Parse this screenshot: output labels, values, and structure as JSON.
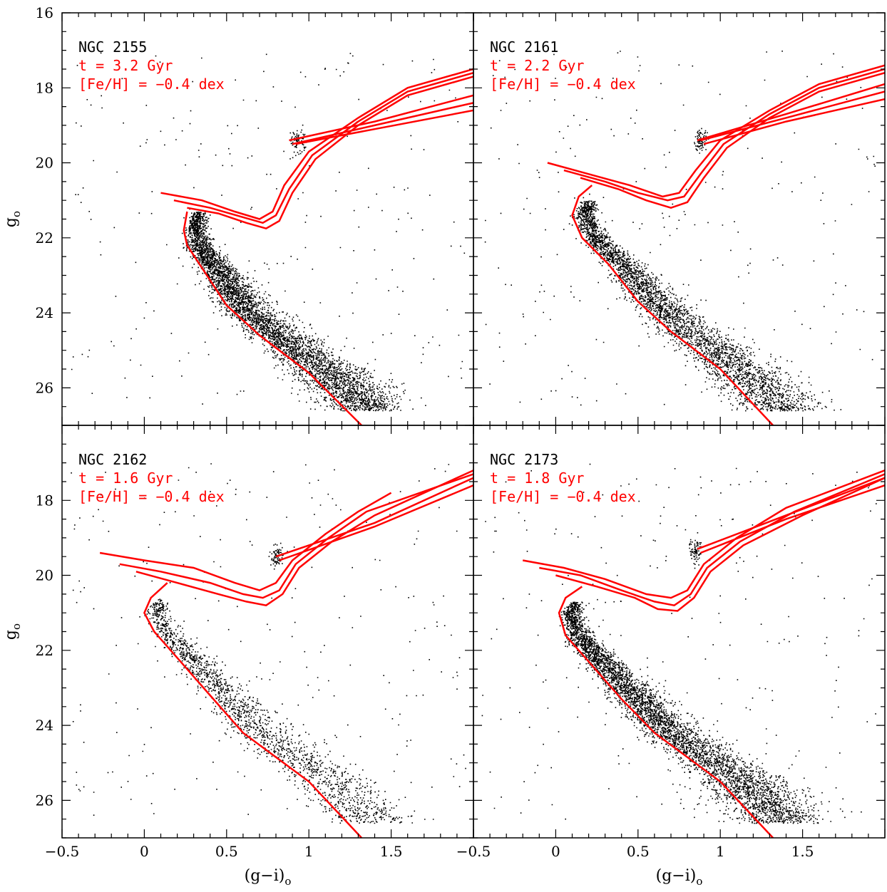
{
  "figure": {
    "x_axis_title": "(g−i)",
    "x_axis_subscript": "o",
    "y_axis_title": "g",
    "y_axis_subscript": "o",
    "isochrone_color": "#ff0000",
    "star_color": "#000000"
  },
  "chart_data": [
    {
      "type": "scatter",
      "cluster": "NGC 2155",
      "age_label": "t = 3.2 Gyr",
      "feh_label": "[Fe/H] = −0.4 dex",
      "xlim": [
        -0.5,
        2.0
      ],
      "ylim": [
        27,
        16
      ],
      "x_ticks": [
        "−0.5",
        "0",
        "0.5",
        "1",
        "1.5"
      ],
      "y_ticks": [
        "16",
        "18",
        "20",
        "22",
        "24",
        "26"
      ],
      "msto": {
        "color": 0.22,
        "mag": 21.3
      },
      "rc": {
        "color": 0.93,
        "mag": 19.4
      },
      "isochrone_mainseq": [
        [
          1.32,
          27.0
        ],
        [
          1.0,
          25.6
        ],
        [
          0.7,
          24.6
        ],
        [
          0.5,
          23.8
        ],
        [
          0.35,
          22.8
        ],
        [
          0.26,
          22.2
        ],
        [
          0.24,
          21.8
        ],
        [
          0.26,
          21.3
        ]
      ],
      "isochrone_tracks": [
        [
          [
            0.1,
            20.8
          ],
          [
            0.35,
            21.0
          ],
          [
            0.55,
            21.3
          ],
          [
            0.7,
            21.5
          ],
          [
            0.78,
            21.3
          ],
          [
            0.85,
            20.6
          ],
          [
            1.0,
            19.7
          ],
          [
            1.3,
            18.8
          ],
          [
            1.6,
            18.0
          ],
          [
            2.0,
            17.5
          ]
        ],
        [
          [
            0.18,
            21.0
          ],
          [
            0.4,
            21.2
          ],
          [
            0.6,
            21.45
          ],
          [
            0.72,
            21.6
          ],
          [
            0.8,
            21.4
          ],
          [
            0.88,
            20.7
          ],
          [
            1.02,
            19.8
          ],
          [
            1.3,
            18.9
          ],
          [
            1.6,
            18.1
          ],
          [
            2.0,
            17.6
          ]
        ],
        [
          [
            0.26,
            21.2
          ],
          [
            0.45,
            21.35
          ],
          [
            0.62,
            21.6
          ],
          [
            0.74,
            21.75
          ],
          [
            0.82,
            21.55
          ],
          [
            0.9,
            20.8
          ],
          [
            1.04,
            19.9
          ],
          [
            1.3,
            19.0
          ],
          [
            1.6,
            18.2
          ],
          [
            2.0,
            17.7
          ]
        ]
      ],
      "isochrone_agb": [
        [
          [
            0.88,
            19.4
          ],
          [
            1.4,
            18.9
          ],
          [
            2.0,
            18.2
          ]
        ],
        [
          [
            0.9,
            19.5
          ],
          [
            1.4,
            19.0
          ],
          [
            2.0,
            18.4
          ]
        ],
        [
          [
            0.92,
            19.5
          ],
          [
            1.4,
            19.1
          ],
          [
            2.0,
            18.6
          ]
        ]
      ]
    },
    {
      "type": "scatter",
      "cluster": "NGC 2161",
      "age_label": "t = 2.2 Gyr",
      "feh_label": "[Fe/H] = −0.4 dex",
      "xlim": [
        -0.5,
        2.0
      ],
      "ylim": [
        27,
        16
      ],
      "x_ticks": [
        "−0.5",
        "0",
        "0.5",
        "1",
        "1.5"
      ],
      "y_ticks": [
        "16",
        "18",
        "20",
        "22",
        "24",
        "26"
      ],
      "msto": {
        "color": 0.08,
        "mag": 21.0
      },
      "rc": {
        "color": 0.88,
        "mag": 19.4
      },
      "isochrone_mainseq": [
        [
          1.32,
          27.0
        ],
        [
          1.0,
          25.5
        ],
        [
          0.7,
          24.5
        ],
        [
          0.5,
          23.7
        ],
        [
          0.32,
          22.7
        ],
        [
          0.16,
          22.0
        ],
        [
          0.1,
          21.4
        ],
        [
          0.14,
          20.9
        ],
        [
          0.22,
          20.6
        ]
      ],
      "isochrone_tracks": [
        [
          [
            -0.05,
            20.0
          ],
          [
            0.2,
            20.3
          ],
          [
            0.45,
            20.6
          ],
          [
            0.65,
            20.9
          ],
          [
            0.75,
            20.8
          ],
          [
            0.85,
            20.2
          ],
          [
            1.0,
            19.4
          ],
          [
            1.3,
            18.6
          ],
          [
            1.6,
            17.9
          ],
          [
            2.0,
            17.4
          ]
        ],
        [
          [
            0.05,
            20.2
          ],
          [
            0.3,
            20.5
          ],
          [
            0.5,
            20.8
          ],
          [
            0.68,
            21.0
          ],
          [
            0.78,
            20.9
          ],
          [
            0.88,
            20.3
          ],
          [
            1.02,
            19.5
          ],
          [
            1.3,
            18.7
          ],
          [
            1.6,
            18.0
          ],
          [
            2.0,
            17.5
          ]
        ],
        [
          [
            0.15,
            20.4
          ],
          [
            0.38,
            20.7
          ],
          [
            0.55,
            21.0
          ],
          [
            0.7,
            21.2
          ],
          [
            0.8,
            21.05
          ],
          [
            0.9,
            20.4
          ],
          [
            1.04,
            19.6
          ],
          [
            1.3,
            18.8
          ],
          [
            1.6,
            18.1
          ],
          [
            2.0,
            17.6
          ]
        ]
      ],
      "isochrone_agb": [
        [
          [
            0.86,
            19.4
          ],
          [
            1.4,
            18.7
          ],
          [
            2.0,
            17.9
          ]
        ],
        [
          [
            0.88,
            19.4
          ],
          [
            1.4,
            18.8
          ],
          [
            2.0,
            18.1
          ]
        ],
        [
          [
            0.9,
            19.5
          ],
          [
            1.4,
            18.9
          ],
          [
            2.0,
            18.3
          ]
        ]
      ]
    },
    {
      "type": "scatter",
      "cluster": "NGC 2162",
      "age_label": "t = 1.6 Gyr",
      "feh_label": "[Fe/H] = −0.4 dex",
      "xlim": [
        -0.5,
        2.0
      ],
      "ylim": [
        27,
        16
      ],
      "x_ticks": [
        "−0.5",
        "0",
        "0.5",
        "1",
        "1.5"
      ],
      "y_ticks": [
        "16",
        "18",
        "20",
        "22",
        "24",
        "26"
      ],
      "msto": {
        "color": 0.0,
        "mag": 20.6
      },
      "rc": {
        "color": 0.8,
        "mag": 19.5
      },
      "isochrone_mainseq": [
        [
          1.32,
          27.0
        ],
        [
          1.0,
          25.5
        ],
        [
          0.6,
          24.2
        ],
        [
          0.4,
          23.2
        ],
        [
          0.2,
          22.2
        ],
        [
          0.06,
          21.5
        ],
        [
          0.0,
          21.0
        ],
        [
          0.04,
          20.6
        ],
        [
          0.14,
          20.2
        ]
      ],
      "isochrone_tracks": [
        [
          [
            -0.27,
            19.4
          ],
          [
            0.0,
            19.6
          ],
          [
            0.3,
            19.8
          ],
          [
            0.55,
            20.2
          ],
          [
            0.7,
            20.4
          ],
          [
            0.8,
            20.2
          ],
          [
            0.9,
            19.6
          ],
          [
            1.1,
            18.9
          ],
          [
            1.3,
            18.3
          ],
          [
            1.5,
            17.8
          ]
        ],
        [
          [
            -0.15,
            19.7
          ],
          [
            0.1,
            19.9
          ],
          [
            0.4,
            20.2
          ],
          [
            0.6,
            20.5
          ],
          [
            0.72,
            20.6
          ],
          [
            0.82,
            20.4
          ],
          [
            0.92,
            19.7
          ],
          [
            1.12,
            19.0
          ],
          [
            1.35,
            18.3
          ],
          [
            2.0,
            17.3
          ]
        ],
        [
          [
            -0.05,
            19.9
          ],
          [
            0.2,
            20.2
          ],
          [
            0.45,
            20.5
          ],
          [
            0.62,
            20.7
          ],
          [
            0.74,
            20.8
          ],
          [
            0.84,
            20.5
          ],
          [
            0.94,
            19.8
          ],
          [
            1.14,
            19.1
          ],
          [
            1.4,
            18.4
          ],
          [
            2.0,
            17.2
          ]
        ]
      ],
      "isochrone_agb": [
        [
          [
            0.8,
            19.5
          ],
          [
            1.4,
            18.6
          ],
          [
            2.0,
            17.4
          ]
        ],
        [
          [
            0.82,
            19.6
          ],
          [
            1.4,
            18.7
          ],
          [
            2.0,
            17.6
          ]
        ]
      ]
    },
    {
      "type": "scatter",
      "cluster": "NGC 2173",
      "age_label": "t = 1.8 Gyr",
      "feh_label": "[Fe/H] = −0.4 dex",
      "xlim": [
        -0.5,
        2.0
      ],
      "ylim": [
        27,
        16
      ],
      "x_ticks": [
        "−0.5",
        "0",
        "0.5",
        "1",
        "1.5"
      ],
      "y_ticks": [
        "16",
        "18",
        "20",
        "22",
        "24",
        "26"
      ],
      "msto": {
        "color": 0.02,
        "mag": 20.7
      },
      "rc": {
        "color": 0.85,
        "mag": 19.3
      },
      "isochrone_mainseq": [
        [
          1.32,
          27.0
        ],
        [
          1.0,
          25.5
        ],
        [
          0.6,
          24.2
        ],
        [
          0.4,
          23.3
        ],
        [
          0.2,
          22.3
        ],
        [
          0.06,
          21.6
        ],
        [
          0.02,
          21.0
        ],
        [
          0.06,
          20.6
        ],
        [
          0.16,
          20.3
        ]
      ],
      "isochrone_tracks": [
        [
          [
            -0.2,
            19.6
          ],
          [
            0.05,
            19.8
          ],
          [
            0.3,
            20.1
          ],
          [
            0.55,
            20.5
          ],
          [
            0.7,
            20.6
          ],
          [
            0.8,
            20.4
          ],
          [
            0.9,
            19.7
          ],
          [
            1.1,
            19.0
          ],
          [
            1.4,
            18.2
          ],
          [
            2.0,
            17.2
          ]
        ],
        [
          [
            -0.1,
            19.8
          ],
          [
            0.15,
            20.0
          ],
          [
            0.4,
            20.4
          ],
          [
            0.6,
            20.7
          ],
          [
            0.72,
            20.8
          ],
          [
            0.82,
            20.5
          ],
          [
            0.92,
            19.8
          ],
          [
            1.12,
            19.1
          ],
          [
            1.45,
            18.3
          ],
          [
            2.0,
            17.3
          ]
        ],
        [
          [
            0.0,
            20.0
          ],
          [
            0.25,
            20.3
          ],
          [
            0.48,
            20.6
          ],
          [
            0.62,
            20.9
          ],
          [
            0.74,
            20.95
          ],
          [
            0.84,
            20.6
          ],
          [
            0.94,
            19.9
          ],
          [
            1.14,
            19.2
          ],
          [
            1.5,
            18.4
          ],
          [
            2.0,
            17.4
          ]
        ]
      ],
      "isochrone_agb": [
        [
          [
            0.86,
            19.3
          ],
          [
            1.4,
            18.4
          ],
          [
            2.0,
            17.4
          ]
        ],
        [
          [
            0.88,
            19.4
          ],
          [
            1.4,
            18.5
          ],
          [
            2.0,
            17.6
          ]
        ]
      ]
    }
  ]
}
